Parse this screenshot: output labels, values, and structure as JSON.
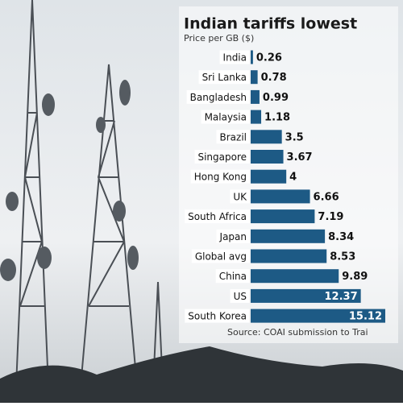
{
  "chart_data": {
    "type": "bar",
    "orientation": "horizontal",
    "title": "Indian tariffs lowest",
    "subtitle": "Price per GB ($)",
    "source": "Source: COAI submission to Trai",
    "categories": [
      "India",
      "Sri Lanka",
      "Bangladesh",
      "Malaysia",
      "Brazil",
      "Singapore",
      "Hong Kong",
      "UK",
      "South Africa",
      "Japan",
      "Global avg",
      "China",
      "US",
      "South Korea"
    ],
    "values": [
      0.26,
      0.78,
      0.99,
      1.18,
      3.5,
      3.67,
      4,
      6.66,
      7.19,
      8.34,
      8.53,
      9.89,
      12.37,
      15.12
    ],
    "color": "#1d5a85"
  }
}
